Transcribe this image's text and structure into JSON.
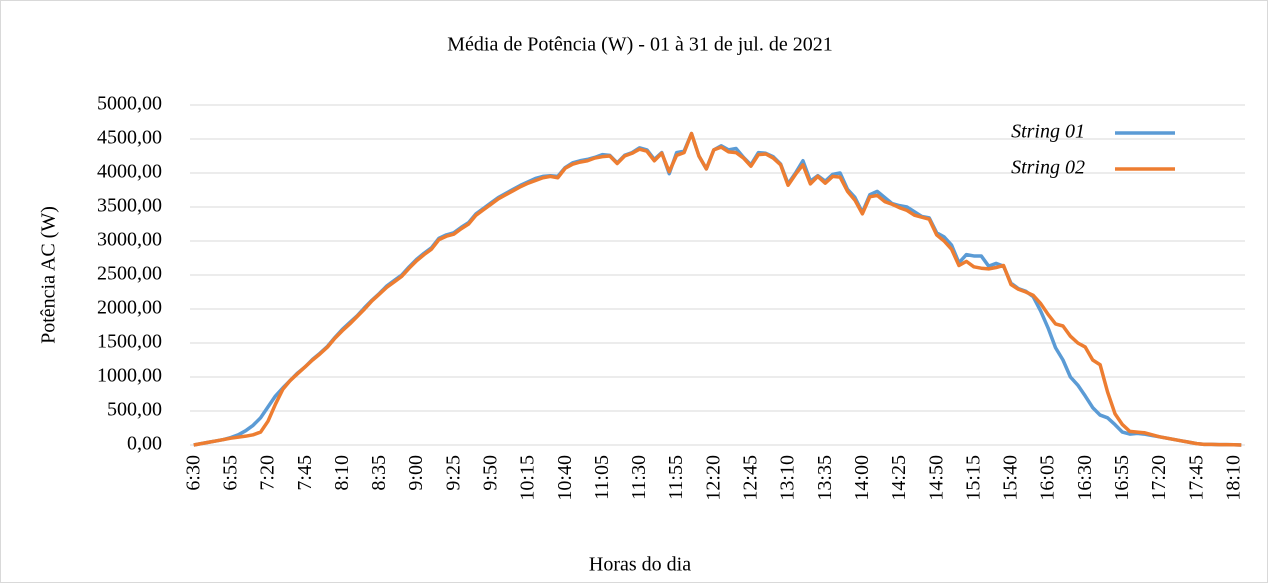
{
  "chart_data": {
    "type": "line",
    "title": "Média de Potência (W) - 01 à 31 de jul. de 2021",
    "x_label": "Horas do dia",
    "y_label": "Potência AC (W)",
    "categories": [
      "6:30",
      null,
      null,
      null,
      null,
      "6:55",
      null,
      null,
      null,
      null,
      "7:20",
      null,
      null,
      null,
      null,
      "7:45",
      null,
      null,
      null,
      null,
      "8:10",
      null,
      null,
      null,
      null,
      "8:35",
      null,
      null,
      null,
      null,
      "9:00",
      null,
      null,
      null,
      null,
      "9:25",
      null,
      null,
      null,
      null,
      "9:50",
      null,
      null,
      null,
      null,
      "10:15",
      null,
      null,
      null,
      null,
      "10:40",
      null,
      null,
      null,
      null,
      "11:05",
      null,
      null,
      null,
      null,
      "11:30",
      null,
      null,
      null,
      null,
      "11:55",
      null,
      null,
      null,
      null,
      "12:20",
      null,
      null,
      null,
      null,
      "12:45",
      null,
      null,
      null,
      null,
      "13:10",
      null,
      null,
      null,
      null,
      "13:35",
      null,
      null,
      null,
      null,
      "14:00",
      null,
      null,
      null,
      null,
      "14:25",
      null,
      null,
      null,
      null,
      "14:50",
      null,
      null,
      null,
      null,
      "15:15",
      null,
      null,
      null,
      null,
      "15:40",
      null,
      null,
      null,
      null,
      "16:05",
      null,
      null,
      null,
      null,
      "16:30",
      null,
      null,
      null,
      null,
      "16:55",
      null,
      null,
      null,
      null,
      "17:20",
      null,
      null,
      null,
      null,
      "17:45",
      null,
      null,
      null,
      null,
      "18:10",
      null
    ],
    "series": [
      {
        "name": "String 01",
        "color": "#5b9bd5",
        "values": [
          0,
          20,
          40,
          60,
          80,
          110,
          150,
          210,
          290,
          400,
          560,
          720,
          840,
          950,
          1060,
          1150,
          1260,
          1350,
          1450,
          1580,
          1700,
          1800,
          1900,
          2020,
          2130,
          2230,
          2340,
          2420,
          2500,
          2620,
          2730,
          2820,
          2900,
          3040,
          3090,
          3120,
          3200,
          3270,
          3400,
          3480,
          3560,
          3640,
          3700,
          3760,
          3820,
          3870,
          3920,
          3950,
          3960,
          3950,
          4080,
          4150,
          4180,
          4200,
          4230,
          4270,
          4260,
          4150,
          4260,
          4300,
          4370,
          4340,
          4200,
          4300,
          3990,
          4300,
          4320,
          4580,
          4250,
          4060,
          4340,
          4400,
          4340,
          4360,
          4230,
          4120,
          4300,
          4290,
          4240,
          4130,
          3840,
          4000,
          4180,
          3880,
          3960,
          3880,
          3980,
          4000,
          3760,
          3640,
          3420,
          3680,
          3730,
          3640,
          3550,
          3520,
          3500,
          3430,
          3360,
          3340,
          3120,
          3060,
          2940,
          2680,
          2800,
          2780,
          2780,
          2630,
          2670,
          2630,
          2380,
          2300,
          2260,
          2180,
          1970,
          1720,
          1430,
          1250,
          1000,
          880,
          720,
          550,
          440,
          400,
          300,
          190,
          160,
          170,
          160,
          140,
          120,
          100,
          80,
          60,
          40,
          20,
          10,
          10,
          5,
          5,
          3,
          0
        ]
      },
      {
        "name": "String 02",
        "color": "#ed7d31",
        "values": [
          0,
          20,
          40,
          60,
          80,
          100,
          115,
          130,
          150,
          190,
          350,
          600,
          820,
          950,
          1050,
          1150,
          1250,
          1340,
          1440,
          1570,
          1680,
          1780,
          1890,
          2000,
          2120,
          2220,
          2320,
          2400,
          2480,
          2600,
          2710,
          2800,
          2880,
          3020,
          3070,
          3100,
          3180,
          3250,
          3380,
          3460,
          3540,
          3620,
          3680,
          3740,
          3800,
          3850,
          3890,
          3930,
          3950,
          3930,
          4070,
          4130,
          4160,
          4180,
          4220,
          4240,
          4250,
          4140,
          4250,
          4290,
          4350,
          4320,
          4180,
          4290,
          4020,
          4260,
          4300,
          4580,
          4250,
          4060,
          4340,
          4380,
          4310,
          4300,
          4220,
          4100,
          4270,
          4280,
          4220,
          4120,
          3820,
          3980,
          4120,
          3840,
          3950,
          3850,
          3950,
          3940,
          3730,
          3600,
          3400,
          3650,
          3670,
          3580,
          3540,
          3490,
          3450,
          3380,
          3350,
          3320,
          3090,
          3000,
          2880,
          2640,
          2700,
          2620,
          2600,
          2590,
          2610,
          2640,
          2360,
          2290,
          2250,
          2200,
          2080,
          1920,
          1780,
          1750,
          1600,
          1500,
          1440,
          1250,
          1180,
          780,
          460,
          300,
          200,
          190,
          180,
          150,
          120,
          100,
          80,
          60,
          40,
          20,
          10,
          10,
          5,
          5,
          3,
          0
        ]
      }
    ],
    "ylim": [
      0,
      5000
    ],
    "yticks": [
      {
        "value": 0,
        "label": "0,00"
      },
      {
        "value": 500,
        "label": "500,00"
      },
      {
        "value": 1000,
        "label": "1000,00"
      },
      {
        "value": 1500,
        "label": "1500,00"
      },
      {
        "value": 2000,
        "label": "2000,00"
      },
      {
        "value": 2500,
        "label": "2500,00"
      },
      {
        "value": 3000,
        "label": "3000,00"
      },
      {
        "value": 3500,
        "label": "3500,00"
      },
      {
        "value": 4000,
        "label": "4000,00"
      },
      {
        "value": 4500,
        "label": "4500,00"
      },
      {
        "value": 5000,
        "label": "5000,00"
      }
    ],
    "grid": true,
    "legend": "upper right"
  }
}
